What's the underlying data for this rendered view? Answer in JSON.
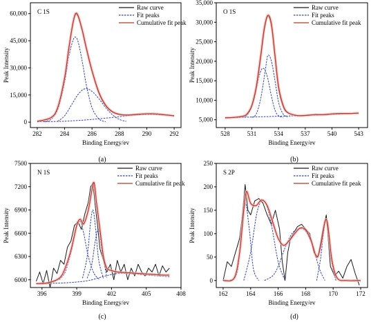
{
  "styles": {
    "raw_color": "#1a1a1a",
    "fit_color": "#2b3fbf",
    "cumulative_color": "#b23a2a",
    "halo_color": "#f3b6b6"
  },
  "chart_data": [
    {
      "id": "c1s",
      "type": "line",
      "panel_label": "C 1S",
      "caption": "(a)",
      "xlabel": "Binding Energy/ev",
      "ylabel": "Peak Intensity",
      "xlim": [
        281.5,
        292.5
      ],
      "ylim": [
        -3000,
        66000
      ],
      "x_ticks": [
        282,
        284,
        286,
        288,
        290,
        292
      ],
      "y_ticks": [
        0,
        15000,
        30000,
        45000,
        60000
      ],
      "y_tick_labels": [
        "0",
        "15,000",
        "30,000",
        "45,000",
        "60,000"
      ],
      "legend": {
        "position": "top-right",
        "entries": [
          "Raw curve",
          "Fit peaks",
          "Cumulative fit peak"
        ]
      },
      "series": [
        {
          "role": "raw",
          "x": [
            282.0,
            283.0,
            283.5,
            284.0,
            284.3,
            284.6,
            284.8,
            285.0,
            285.3,
            285.6,
            286.0,
            286.5,
            287.0,
            287.5,
            288.0,
            288.5,
            289.0,
            289.5,
            290.0,
            290.5,
            291.0,
            291.5,
            292.0
          ],
          "y": [
            400,
            2500,
            8000,
            24000,
            40000,
            54000,
            59500,
            58000,
            50000,
            40000,
            28000,
            16000,
            9000,
            5500,
            4200,
            3800,
            4000,
            4400,
            4600,
            4600,
            4300,
            3900,
            3500
          ]
        },
        {
          "role": "fit",
          "x": [
            282.5,
            283.0,
            283.5,
            284.0,
            284.3,
            284.6,
            284.8,
            285.0,
            285.3,
            285.6,
            286.0,
            286.5,
            287.0
          ],
          "y": [
            200,
            1500,
            7000,
            22000,
            36000,
            45000,
            47000,
            44000,
            33000,
            20000,
            8000,
            1800,
            200
          ]
        },
        {
          "role": "fit",
          "x": [
            283.5,
            284.0,
            284.5,
            285.0,
            285.5,
            286.0,
            286.5,
            287.0,
            287.5,
            288.0,
            288.5
          ],
          "y": [
            500,
            3500,
            9500,
            15500,
            18500,
            17000,
            13000,
            8000,
            4000,
            1500,
            400
          ]
        },
        {
          "role": "fit",
          "x": [
            282.0,
            284.0,
            286.0,
            288.0,
            289.0,
            290.0,
            291.0,
            292.0
          ],
          "y": [
            200,
            500,
            1500,
            3000,
            3900,
            4300,
            4100,
            3600
          ]
        },
        {
          "role": "cumulative",
          "x": [
            282.0,
            283.0,
            283.5,
            284.0,
            284.3,
            284.6,
            284.8,
            285.0,
            285.3,
            285.6,
            286.0,
            286.5,
            287.0,
            287.5,
            288.0,
            288.5,
            289.0,
            289.5,
            290.0,
            290.5,
            291.0,
            291.5,
            292.0
          ],
          "y": [
            400,
            2500,
            8200,
            24500,
            40500,
            54500,
            60000,
            58500,
            50500,
            40500,
            28500,
            16500,
            9300,
            5700,
            4300,
            3900,
            4100,
            4400,
            4600,
            4600,
            4300,
            3900,
            3500
          ]
        }
      ]
    },
    {
      "id": "o1s",
      "type": "line",
      "panel_label": "O 1S",
      "caption": "(b)",
      "xlabel": "Binding Energy/ev",
      "ylabel": "Peak Intensity",
      "xlim": [
        527,
        544
      ],
      "ylim": [
        3000,
        35000
      ],
      "x_ticks": [
        528,
        531,
        534,
        537,
        540,
        543
      ],
      "y_ticks": [
        5000,
        10000,
        15000,
        20000,
        25000,
        30000,
        35000
      ],
      "y_tick_labels": [
        "5,000",
        "10,000",
        "15,000",
        "20,000",
        "25,000",
        "30,000",
        "35,000"
      ],
      "legend": {
        "position": "top-right",
        "entries": [
          "Raw curve",
          "Fit peaks",
          "Cumulative fit peak"
        ]
      },
      "series": [
        {
          "role": "raw",
          "x": [
            528.0,
            529.0,
            530.0,
            530.5,
            531.0,
            531.5,
            532.0,
            532.4,
            532.8,
            533.2,
            533.6,
            534.0,
            534.5,
            535.0,
            536.0,
            537.0,
            538.0,
            539.0,
            540.0,
            541.0,
            542.0,
            543.0
          ],
          "y": [
            5500,
            5600,
            5900,
            6500,
            8500,
            13000,
            21000,
            28000,
            31500,
            29000,
            21000,
            13000,
            8500,
            6800,
            6100,
            6100,
            6300,
            6300,
            6500,
            6600,
            6600,
            6700
          ]
        },
        {
          "role": "fit",
          "x": [
            530.0,
            530.5,
            531.0,
            531.5,
            532.0,
            532.4,
            532.8,
            533.2,
            533.6,
            534.0,
            534.5
          ],
          "y": [
            5600,
            6200,
            8500,
            13000,
            17500,
            18000,
            15500,
            11000,
            7500,
            6000,
            5600
          ]
        },
        {
          "role": "fit",
          "x": [
            531.0,
            531.5,
            532.0,
            532.5,
            532.8,
            533.2,
            533.6,
            534.0,
            534.5,
            535.0
          ],
          "y": [
            5600,
            6500,
            10500,
            17500,
            21500,
            20000,
            15000,
            9500,
            6500,
            5700
          ]
        },
        {
          "role": "fit",
          "x": [
            528.0,
            531.0,
            534.0,
            537.0,
            540.0,
            543.0
          ],
          "y": [
            5500,
            5700,
            5900,
            6100,
            6400,
            6700
          ]
        },
        {
          "role": "cumulative",
          "x": [
            528.0,
            529.0,
            530.0,
            530.5,
            531.0,
            531.5,
            532.0,
            532.4,
            532.8,
            533.2,
            533.6,
            534.0,
            534.5,
            535.0,
            536.0,
            537.0,
            538.0,
            539.0,
            540.0,
            541.0,
            542.0,
            543.0
          ],
          "y": [
            5500,
            5600,
            5900,
            6600,
            8700,
            13500,
            21500,
            28500,
            31800,
            29500,
            21500,
            13500,
            8800,
            6900,
            6100,
            6100,
            6300,
            6300,
            6500,
            6600,
            6600,
            6700
          ]
        }
      ]
    },
    {
      "id": "n1s",
      "type": "line",
      "panel_label": "N 1S",
      "caption": "(c)",
      "xlabel": "Binding Energy/ev",
      "ylabel": "Peak Intensity",
      "xlim": [
        395,
        408
      ],
      "ylim": [
        5900,
        7500
      ],
      "x_ticks": [
        396,
        399,
        402,
        405,
        408
      ],
      "y_ticks": [
        6000,
        6300,
        6600,
        6900,
        7200,
        7500
      ],
      "y_tick_labels": [
        "6000",
        "6300",
        "6600",
        "6900",
        "7200",
        "7500"
      ],
      "legend": {
        "position": "top-right",
        "entries": [
          "Raw curve",
          "Fit peaks",
          "Cumulative fit peak"
        ]
      },
      "series": [
        {
          "role": "raw",
          "x": [
            395.5,
            395.8,
            396.1,
            396.4,
            396.7,
            397.0,
            397.3,
            397.6,
            397.9,
            398.2,
            398.5,
            398.8,
            399.1,
            399.4,
            399.7,
            400.0,
            400.2,
            400.4,
            400.6,
            400.8,
            401.0,
            401.3,
            401.6,
            401.9,
            402.2,
            402.5,
            402.8,
            403.1,
            403.4,
            403.7,
            404.0,
            404.3,
            404.6,
            404.9,
            405.2,
            405.5,
            405.8,
            406.1,
            406.4,
            406.7,
            407.0
          ],
          "y": [
            5980,
            6100,
            5950,
            6120,
            5900,
            6150,
            6080,
            6250,
            6200,
            6420,
            6500,
            6700,
            6750,
            6650,
            6850,
            7000,
            7200,
            7250,
            6950,
            6700,
            6400,
            6250,
            6100,
            6200,
            6000,
            6250,
            6100,
            6200,
            6000,
            6150,
            6050,
            6200,
            6100,
            6050,
            6150,
            6100,
            6200,
            6050,
            6180,
            6100,
            6150
          ]
        },
        {
          "role": "fit",
          "x": [
            397.5,
            398.0,
            398.5,
            399.0,
            399.3,
            399.6,
            400.0,
            400.5,
            401.0
          ],
          "y": [
            6000,
            6100,
            6350,
            6700,
            6750,
            6600,
            6300,
            6080,
            6000
          ]
        },
        {
          "role": "fit",
          "x": [
            399.5,
            399.9,
            400.2,
            400.4,
            400.6,
            400.9,
            401.3
          ],
          "y": [
            6020,
            6300,
            6750,
            6900,
            6700,
            6250,
            6020
          ]
        },
        {
          "role": "fit",
          "x": [
            399.9,
            400.3,
            400.6,
            400.9,
            401.2,
            401.6
          ],
          "y": [
            6020,
            6200,
            6500,
            6650,
            6350,
            6030
          ]
        },
        {
          "role": "fit",
          "x": [
            395.5,
            397.0,
            398.5,
            400.0,
            401.5,
            402.5,
            403.5,
            405.0,
            407.0
          ],
          "y": [
            5950,
            5955,
            5965,
            5990,
            6050,
            6080,
            6080,
            6060,
            6040
          ]
        },
        {
          "role": "cumulative",
          "x": [
            395.5,
            396.5,
            397.5,
            398.0,
            398.5,
            399.0,
            399.3,
            399.6,
            400.0,
            400.3,
            400.5,
            400.7,
            401.0,
            401.3,
            401.6,
            402.0,
            402.5,
            403.5,
            404.5,
            405.5,
            406.5,
            407.0
          ],
          "y": [
            5950,
            5960,
            6020,
            6150,
            6380,
            6700,
            6780,
            6720,
            6900,
            7150,
            7250,
            7000,
            6650,
            6300,
            6150,
            6120,
            6100,
            6090,
            6080,
            6070,
            6060,
            6060
          ]
        }
      ]
    },
    {
      "id": "s2p",
      "type": "line",
      "panel_label": "S 2P",
      "caption": "(d)",
      "xlabel": "Binding Energy/ev",
      "ylabel": "Peak Intensity",
      "xlim": [
        161.5,
        172.5
      ],
      "ylim": [
        -15,
        250
      ],
      "x_ticks": [
        162,
        164,
        166,
        168,
        170,
        172
      ],
      "y_ticks": [
        0,
        50,
        100,
        150,
        200,
        250
      ],
      "y_tick_labels": [
        "0",
        "50",
        "100",
        "150",
        "200",
        "250"
      ],
      "legend": {
        "position": "top-right",
        "entries": [
          "Raw curve",
          "Fit peaks",
          "Cumulative fit peak"
        ]
      },
      "series": [
        {
          "role": "raw",
          "x": [
            162.0,
            162.3,
            162.6,
            162.9,
            163.2,
            163.4,
            163.6,
            163.8,
            164.0,
            164.3,
            164.6,
            164.9,
            165.2,
            165.5,
            165.8,
            166.1,
            166.3,
            166.5,
            166.7,
            166.9,
            167.1,
            167.4,
            167.7,
            168.0,
            168.3,
            168.6,
            168.9,
            169.2,
            169.5,
            169.8,
            170.1,
            170.4,
            170.7,
            171.0,
            171.3,
            171.6,
            171.9
          ],
          "y": [
            0,
            40,
            30,
            60,
            90,
            140,
            205,
            150,
            140,
            170,
            175,
            165,
            140,
            120,
            150,
            110,
            40,
            0,
            60,
            90,
            100,
            115,
            120,
            110,
            100,
            60,
            50,
            100,
            140,
            30,
            10,
            20,
            5,
            30,
            45,
            15,
            -10
          ]
        },
        {
          "role": "fit",
          "x": [
            162.5,
            163.0,
            163.3,
            163.6,
            163.9,
            164.2,
            164.6
          ],
          "y": [
            0,
            15,
            90,
            165,
            110,
            25,
            0
          ]
        },
        {
          "role": "fit",
          "x": [
            163.5,
            164.0,
            164.5,
            165.0,
            165.5,
            166.0,
            166.5
          ],
          "y": [
            0,
            60,
            150,
            170,
            120,
            40,
            0
          ]
        },
        {
          "role": "fit",
          "x": [
            165.0,
            165.6,
            166.0,
            166.5,
            167.0,
            167.5,
            168.0,
            168.5,
            169.0,
            169.4
          ],
          "y": [
            0,
            10,
            30,
            70,
            100,
            110,
            105,
            75,
            25,
            0
          ]
        },
        {
          "role": "fit",
          "x": [
            168.8,
            169.1,
            169.4,
            169.6,
            169.9,
            170.2
          ],
          "y": [
            0,
            50,
            125,
            120,
            40,
            0
          ]
        },
        {
          "role": "cumulative",
          "x": [
            162.0,
            162.8,
            163.2,
            163.5,
            163.7,
            164.0,
            164.4,
            164.8,
            165.2,
            165.6,
            166.0,
            166.4,
            166.8,
            167.2,
            167.6,
            168.0,
            168.4,
            168.8,
            169.1,
            169.4,
            169.6,
            169.9,
            170.3,
            171.0,
            172.0
          ],
          "y": [
            0,
            5,
            60,
            150,
            190,
            165,
            160,
            172,
            160,
            125,
            90,
            75,
            85,
            100,
            112,
            108,
            85,
            50,
            75,
            125,
            120,
            45,
            5,
            0,
            0
          ]
        }
      ]
    }
  ]
}
